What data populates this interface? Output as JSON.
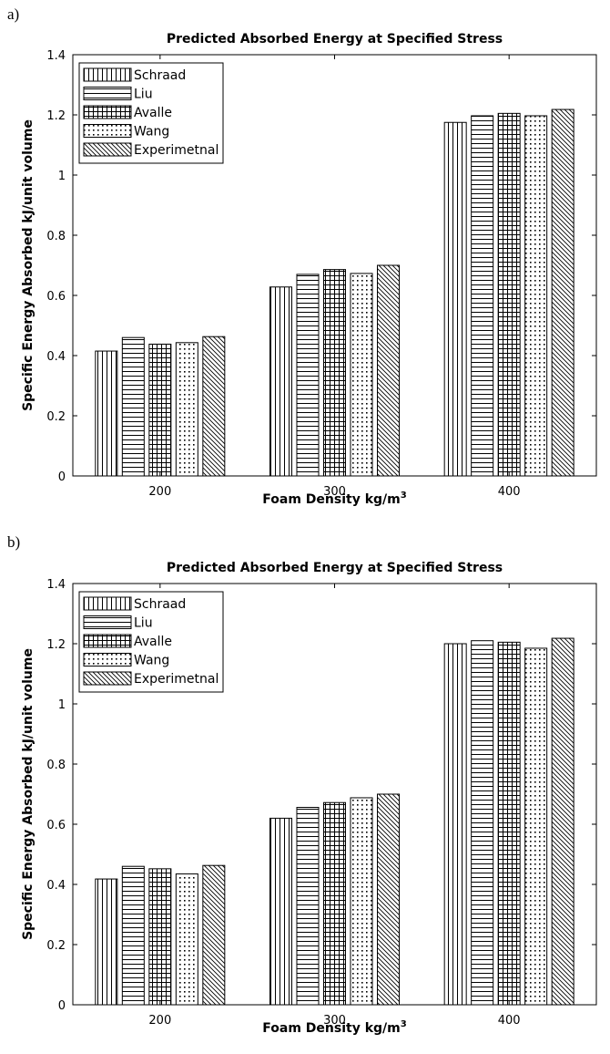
{
  "panels": [
    {
      "label": "a)",
      "chart_data": {
        "type": "bar",
        "title": "Predicted Absorbed Energy at Specified Stress",
        "xlabel": "Foam Density kg/m",
        "xlabel_sup": "3",
        "ylabel": "Specific Energy Absorbed kJ/unit volume",
        "categories": [
          "200",
          "300",
          "400"
        ],
        "ylim": [
          0,
          1.4
        ],
        "yticks": [
          "0",
          "0.2",
          "0.4",
          "0.6",
          "0.8",
          "1",
          "1.2",
          "1.4"
        ],
        "legend_position": "top-left",
        "series": [
          {
            "name": "Schraad",
            "pattern": "vertical-lines",
            "values": [
              0.415,
              0.628,
              1.175
            ]
          },
          {
            "name": "Liu",
            "pattern": "horizontal-lines",
            "values": [
              0.46,
              0.67,
              1.197
            ]
          },
          {
            "name": "Avalle",
            "pattern": "grid",
            "values": [
              0.438,
              0.686,
              1.205
            ]
          },
          {
            "name": "Wang",
            "pattern": "dots",
            "values": [
              0.443,
              0.673,
              1.197
            ]
          },
          {
            "name": "Experimetnal",
            "pattern": "diagonal",
            "values": [
              0.463,
              0.7,
              1.218
            ]
          }
        ]
      }
    },
    {
      "label": "b)",
      "chart_data": {
        "type": "bar",
        "title": "Predicted Absorbed Energy at Specified Stress",
        "xlabel": "Foam Density kg/m",
        "xlabel_sup": "3",
        "ylabel": "Specific Energy Absorbed kJ/unit volume",
        "categories": [
          "200",
          "300",
          "400"
        ],
        "ylim": [
          0,
          1.4
        ],
        "yticks": [
          "0",
          "0.2",
          "0.4",
          "0.6",
          "0.8",
          "1",
          "1.2",
          "1.4"
        ],
        "legend_position": "top-left",
        "series": [
          {
            "name": "Schraad",
            "pattern": "vertical-lines",
            "values": [
              0.418,
              0.62,
              1.2
            ]
          },
          {
            "name": "Liu",
            "pattern": "horizontal-lines",
            "values": [
              0.46,
              0.656,
              1.21
            ]
          },
          {
            "name": "Avalle",
            "pattern": "grid",
            "values": [
              0.452,
              0.672,
              1.205
            ]
          },
          {
            "name": "Wang",
            "pattern": "dots",
            "values": [
              0.435,
              0.688,
              1.185
            ]
          },
          {
            "name": "Experimetnal",
            "pattern": "diagonal",
            "values": [
              0.463,
              0.7,
              1.218
            ]
          }
        ]
      }
    }
  ]
}
